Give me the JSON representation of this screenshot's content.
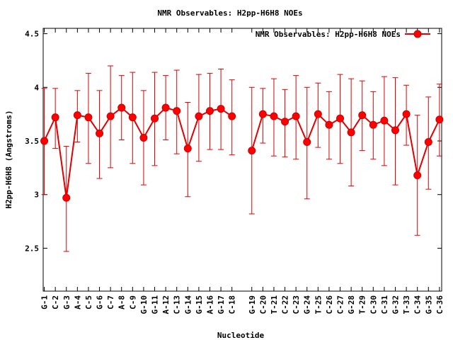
{
  "chart_data": {
    "type": "line",
    "title": "NMR Observables: H2pp-H6H8 NOEs",
    "xlabel": "Nucleotide",
    "ylabel": "H2pp-H6H8 (Angstroms)",
    "ylim": [
      2.1,
      4.55
    ],
    "yticks": [
      2.5,
      3,
      3.5,
      4,
      4.5
    ],
    "ytick_labels": [
      "2.5",
      "3",
      "3.5",
      "4",
      "4.5"
    ],
    "legend": {
      "label": "NMR Observables: H2pp-H6H8 NOEs",
      "position": "top-right"
    },
    "grid": false,
    "categories": [
      "G-1",
      "C-2",
      "G-3",
      "A-4",
      "C-5",
      "G-6",
      "C-7",
      "A-8",
      "C-9",
      "G-10",
      "G-11",
      "A-12",
      "C-13",
      "G-14",
      "G-15",
      "A-16",
      "G-17",
      "C-18",
      "G-19",
      "C-20",
      "T-21",
      "C-22",
      "C-23",
      "G-24",
      "T-25",
      "C-26",
      "C-27",
      "G-28",
      "T-29",
      "C-30",
      "C-31",
      "G-32",
      "T-33",
      "C-34",
      "G-35",
      "C-36"
    ],
    "x": [
      1,
      2,
      3,
      4,
      5,
      6,
      7,
      8,
      9,
      10,
      11,
      12,
      13,
      14,
      15,
      16,
      17,
      18,
      19.8,
      20.8,
      21.8,
      22.8,
      23.8,
      24.8,
      25.8,
      26.8,
      27.8,
      28.8,
      29.8,
      30.8,
      31.8,
      32.8,
      33.8,
      34.8,
      35.8,
      36.8
    ],
    "xlim": [
      0.9,
      37
    ],
    "segments": [
      [
        0,
        17
      ],
      [
        18,
        35
      ]
    ],
    "series": [
      {
        "name": "NMR Observables: H2pp-H6H8 NOEs",
        "color": "#ff0000",
        "values": [
          3.5,
          3.72,
          2.97,
          3.74,
          3.72,
          3.57,
          3.73,
          3.81,
          3.72,
          3.53,
          3.71,
          3.81,
          3.78,
          3.43,
          3.73,
          3.78,
          3.8,
          3.73,
          3.41,
          3.75,
          3.73,
          3.68,
          3.73,
          3.49,
          3.75,
          3.65,
          3.71,
          3.58,
          3.74,
          3.65,
          3.69,
          3.6,
          3.75,
          3.18,
          3.49,
          3.7
        ],
        "err_low": [
          3.0,
          3.43,
          2.47,
          3.49,
          3.29,
          3.15,
          3.25,
          3.51,
          3.29,
          3.09,
          3.27,
          3.51,
          3.38,
          2.98,
          3.31,
          3.42,
          3.42,
          3.37,
          2.82,
          3.48,
          3.36,
          3.35,
          3.33,
          2.96,
          3.44,
          3.33,
          3.29,
          3.08,
          3.41,
          3.33,
          3.27,
          3.09,
          3.46,
          2.62,
          3.05,
          3.36
        ],
        "err_high": [
          3.99,
          3.99,
          3.45,
          3.97,
          4.13,
          3.97,
          4.2,
          4.11,
          4.14,
          3.97,
          4.14,
          4.11,
          4.16,
          3.86,
          4.12,
          4.13,
          4.17,
          4.07,
          4.0,
          3.99,
          4.08,
          3.98,
          4.11,
          4.0,
          4.04,
          3.96,
          4.12,
          4.08,
          4.06,
          3.96,
          4.1,
          4.09,
          4.02,
          3.74,
          3.91,
          4.03
        ]
      }
    ]
  }
}
